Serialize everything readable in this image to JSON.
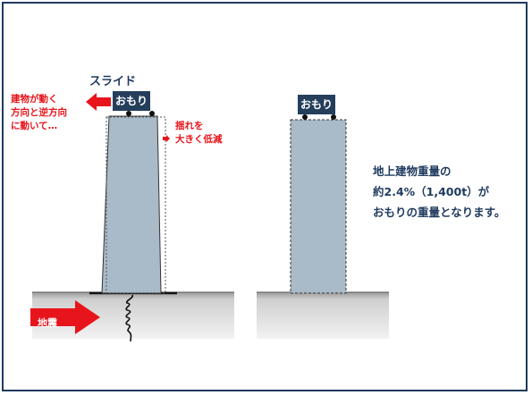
{
  "diagram": {
    "slide_label": "スライド",
    "building_moves_lines": [
      "建物が動く",
      "方向と逆方向",
      "に動いて…"
    ],
    "reduce_shaking_lines": [
      "揺れを",
      "大きく低減"
    ],
    "weight_label": "おもり",
    "earthquake_label": "地震",
    "weight_description_lines": [
      "地上建物重量の",
      "約2.4%（1,400t）が",
      "おもりの重量となります。"
    ]
  },
  "colors": {
    "frame": "#1f3a5f",
    "building": "#a9bac8",
    "weight_block": "#243e5c",
    "arrow_red": "#e8141b",
    "ground": "#d2d2d2",
    "text_navy": "#1f3a5f"
  }
}
